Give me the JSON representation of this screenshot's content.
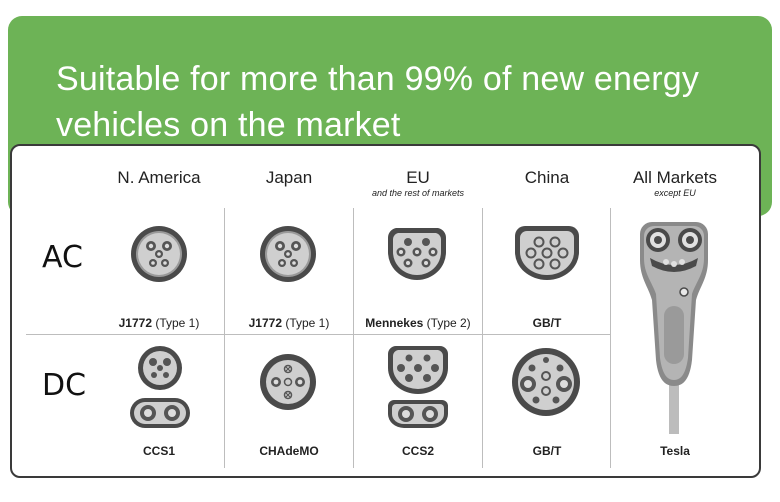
{
  "banner": {
    "title_line1": "Suitable for more than 99% of new energy",
    "title_line2": "vehicles on the market"
  },
  "columns": [
    {
      "name": "N. America",
      "sub": ""
    },
    {
      "name": "Japan",
      "sub": ""
    },
    {
      "name": "EU",
      "sub": "and the rest of markets"
    },
    {
      "name": "China",
      "sub": ""
    },
    {
      "name": "All Markets",
      "sub": "except EU"
    }
  ],
  "rows": {
    "ac": "AC",
    "dc": "DC"
  },
  "ac_plugs": [
    {
      "bold": "J1772",
      "rest": " (Type 1)"
    },
    {
      "bold": "J1772",
      "rest": " (Type 1)"
    },
    {
      "bold": "Mennekes",
      "rest": " (Type 2)"
    },
    {
      "bold": "GB/T",
      "rest": ""
    }
  ],
  "dc_plugs": [
    {
      "bold": "CCS1",
      "rest": ""
    },
    {
      "bold": "CHAdeMO",
      "rest": ""
    },
    {
      "bold": "CCS2",
      "rest": ""
    },
    {
      "bold": "GB/T",
      "rest": ""
    }
  ],
  "tesla": {
    "bold": "Tesla"
  },
  "colors": {
    "banner_green": "#6db356",
    "plug_dark": "#4a4a4a",
    "plug_mid": "#9a9a9a",
    "plug_light": "#cfcfcf",
    "border": "#3a3a3a"
  },
  "icons": {
    "ac_na": "j1772-connector-icon",
    "ac_jp": "j1772-connector-icon",
    "ac_eu": "type2-connector-icon",
    "ac_cn": "gbt-ac-connector-icon",
    "dc_na": "ccs1-connector-icon",
    "dc_jp": "chademo-connector-icon",
    "dc_eu": "ccs2-connector-icon",
    "dc_cn": "gbt-dc-connector-icon",
    "tesla": "tesla-connector-icon"
  }
}
